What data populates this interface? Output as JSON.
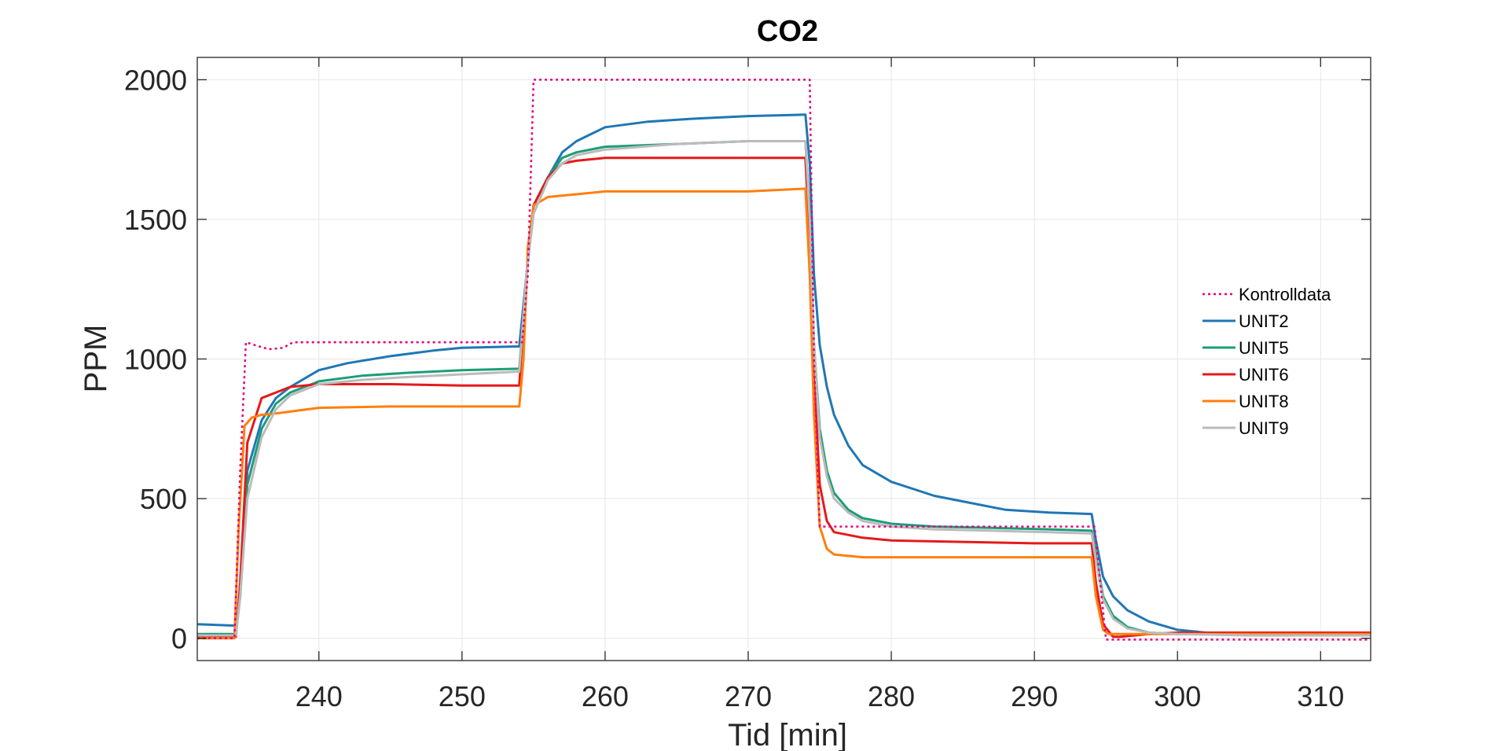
{
  "chart_data": {
    "type": "line",
    "title": "CO2",
    "xlabel": "Tid [min]",
    "ylabel": "PPM",
    "xlim": [
      231.5,
      313.5
    ],
    "ylim": [
      -80,
      2080
    ],
    "xticks": [
      240,
      250,
      260,
      270,
      280,
      290,
      300,
      310
    ],
    "yticks": [
      0,
      500,
      1000,
      1500,
      2000
    ],
    "grid": true,
    "legend_position": "right",
    "series": [
      {
        "name": "Kontrolldata",
        "color": "#E4007C",
        "style": "dotted",
        "x": [
          231.5,
          234.1,
          234.5,
          234.9,
          235.5,
          236.5,
          237.5,
          238.2,
          254.2,
          254.6,
          255.0,
          274.3,
          274.6,
          275.0,
          294.2,
          294.6,
          295.0,
          313.5
        ],
        "y": [
          0,
          0,
          600,
          1060,
          1050,
          1035,
          1040,
          1060,
          1060,
          1300,
          2000,
          2000,
          1000,
          400,
          400,
          200,
          -5,
          -5
        ]
      },
      {
        "name": "UNIT2",
        "color": "#1F77B4",
        "style": "solid",
        "x": [
          231.5,
          234.2,
          234.5,
          235.0,
          236.0,
          237.0,
          238.0,
          240.0,
          242.0,
          245.0,
          248.0,
          250.0,
          254.0,
          254.5,
          255.0,
          256.0,
          257.0,
          258.0,
          260.0,
          263.0,
          266.0,
          270.0,
          274.0,
          274.3,
          274.6,
          275.0,
          275.5,
          276.0,
          277.0,
          278.0,
          280.0,
          283.0,
          285.0,
          288.0,
          291.0,
          294.0,
          294.3,
          294.8,
          295.5,
          296.5,
          298.0,
          300.0,
          303.0,
          306.0,
          310.0,
          313.5
        ],
        "y": [
          50,
          45,
          150,
          600,
          780,
          860,
          900,
          960,
          985,
          1010,
          1030,
          1040,
          1045,
          1300,
          1550,
          1650,
          1740,
          1780,
          1830,
          1850,
          1860,
          1870,
          1875,
          1700,
          1300,
          1050,
          900,
          800,
          690,
          620,
          560,
          510,
          490,
          460,
          450,
          445,
          350,
          220,
          150,
          100,
          60,
          30,
          15,
          10,
          10,
          10
        ]
      },
      {
        "name": "UNIT5",
        "color": "#1B9E77",
        "style": "solid",
        "x": [
          231.5,
          234.2,
          234.5,
          235.0,
          236.0,
          237.0,
          238.0,
          240.0,
          243.0,
          246.0,
          250.0,
          254.0,
          254.5,
          255.0,
          256.0,
          257.0,
          258.0,
          260.0,
          265.0,
          270.0,
          274.0,
          274.3,
          274.6,
          275.0,
          275.5,
          276.0,
          277.0,
          278.0,
          280.0,
          283.0,
          287.0,
          291.0,
          294.0,
          294.3,
          294.8,
          295.5,
          296.5,
          298.0,
          300.0,
          305.0,
          313.5
        ],
        "y": [
          15,
          15,
          150,
          550,
          750,
          840,
          880,
          920,
          940,
          950,
          960,
          965,
          1300,
          1550,
          1650,
          1720,
          1740,
          1760,
          1770,
          1780,
          1780,
          1500,
          1050,
          750,
          600,
          520,
          460,
          430,
          410,
          400,
          395,
          390,
          385,
          300,
          150,
          80,
          40,
          20,
          15,
          15,
          15
        ]
      },
      {
        "name": "UNIT6",
        "color": "#E41A1C",
        "style": "solid",
        "x": [
          231.5,
          234.2,
          234.5,
          235.0,
          236.0,
          237.0,
          238.0,
          240.0,
          245.0,
          250.0,
          254.0,
          254.5,
          255.0,
          256.0,
          257.0,
          258.0,
          260.0,
          265.0,
          270.0,
          274.0,
          274.3,
          274.6,
          275.0,
          275.5,
          276.0,
          278.0,
          280.0,
          285.0,
          290.0,
          294.0,
          294.3,
          294.8,
          295.5,
          296.0,
          298.0,
          300.0,
          313.5
        ],
        "y": [
          5,
          5,
          200,
          700,
          860,
          880,
          900,
          910,
          910,
          905,
          905,
          1300,
          1550,
          1650,
          1700,
          1710,
          1720,
          1720,
          1720,
          1720,
          1400,
          950,
          550,
          420,
          380,
          360,
          350,
          345,
          340,
          340,
          200,
          50,
          5,
          5,
          15,
          20,
          20
        ]
      },
      {
        "name": "UNIT8",
        "color": "#FF7F0E",
        "style": "solid",
        "x": [
          231.5,
          234.1,
          234.4,
          234.8,
          235.3,
          236.0,
          237.0,
          240.0,
          245.0,
          250.0,
          254.0,
          254.3,
          254.6,
          255.0,
          256.0,
          258.0,
          260.0,
          265.0,
          270.0,
          274.0,
          274.3,
          274.6,
          275.0,
          275.5,
          276.0,
          278.0,
          280.0,
          285.0,
          290.0,
          294.0,
          294.3,
          294.8,
          295.2,
          296.0,
          313.5
        ],
        "y": [
          0,
          0,
          400,
          760,
          790,
          800,
          805,
          825,
          830,
          830,
          830,
          1000,
          1400,
          1550,
          1580,
          1590,
          1600,
          1600,
          1600,
          1610,
          1300,
          800,
          400,
          320,
          300,
          290,
          290,
          290,
          290,
          290,
          150,
          30,
          15,
          15,
          15
        ]
      },
      {
        "name": "UNIT9",
        "color": "#BBBBBB",
        "style": "solid",
        "x": [
          231.5,
          234.2,
          234.5,
          235.0,
          236.0,
          237.0,
          238.0,
          240.0,
          243.0,
          246.0,
          250.0,
          254.0,
          254.5,
          255.0,
          256.0,
          257.0,
          258.0,
          260.0,
          265.0,
          270.0,
          274.0,
          274.3,
          274.6,
          275.0,
          275.5,
          276.0,
          277.0,
          278.0,
          280.0,
          283.0,
          287.0,
          291.0,
          294.0,
          294.3,
          294.8,
          295.5,
          296.5,
          298.0,
          300.0,
          305.0,
          313.5
        ],
        "y": [
          10,
          10,
          150,
          500,
          720,
          820,
          870,
          910,
          925,
          935,
          945,
          955,
          1300,
          1520,
          1640,
          1700,
          1730,
          1750,
          1770,
          1780,
          1780,
          1500,
          1050,
          720,
          580,
          500,
          450,
          420,
          400,
          390,
          385,
          380,
          375,
          280,
          140,
          70,
          35,
          20,
          15,
          10,
          10
        ]
      }
    ]
  }
}
